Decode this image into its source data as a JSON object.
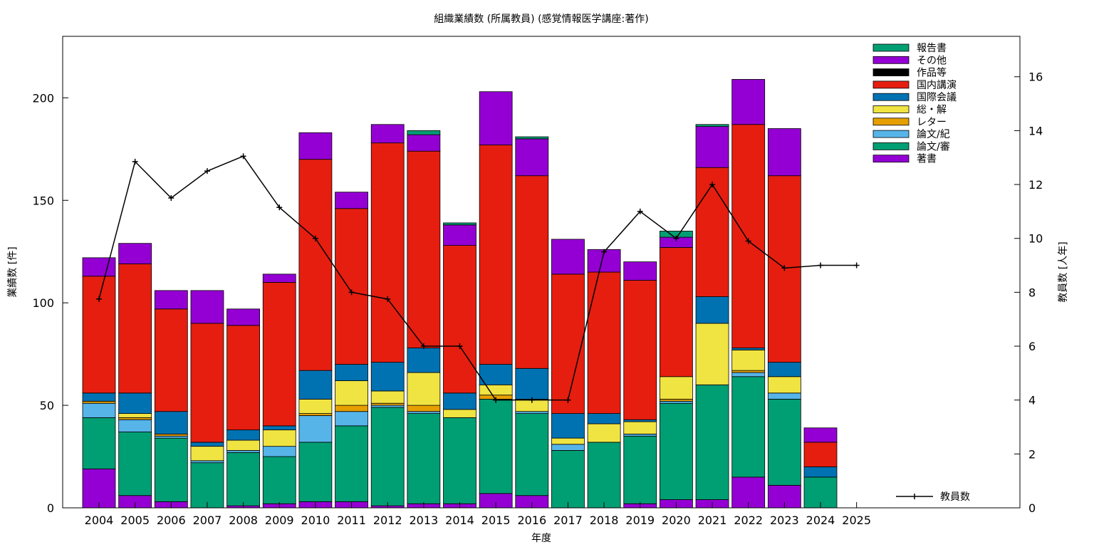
{
  "chart_data": {
    "type": "bar",
    "stacked": true,
    "title": "組織業績数 (所属教員) (感覚情報医学講座:著作)",
    "xlabel": "年度",
    "ylabel": "業績数 [件]",
    "y2label": "教員数 [人年]",
    "ylim": [
      0,
      230
    ],
    "y2lim": [
      0,
      17.5
    ],
    "yticks": [
      0,
      50,
      100,
      150,
      200
    ],
    "y2ticks": [
      0,
      2,
      4,
      6,
      8,
      10,
      12,
      14,
      16
    ],
    "grid": false,
    "legend_position": "top-right",
    "categories": [
      "2004",
      "2005",
      "2006",
      "2007",
      "2008",
      "2009",
      "2010",
      "2011",
      "2012",
      "2013",
      "2014",
      "2015",
      "2016",
      "2017",
      "2018",
      "2019",
      "2020",
      "2021",
      "2022",
      "2023",
      "2024",
      "2025"
    ],
    "series": [
      {
        "name": "著書",
        "color": "#9400d3",
        "values": [
          19,
          6,
          3,
          0,
          1,
          2,
          3,
          3,
          1,
          2,
          2,
          7,
          6,
          0,
          0,
          2,
          4,
          4,
          15,
          11,
          0,
          0
        ]
      },
      {
        "name": "論文/審",
        "color": "#009e73",
        "values": [
          25,
          31,
          31,
          22,
          26,
          23,
          29,
          37,
          48,
          44,
          42,
          46,
          40,
          28,
          32,
          33,
          47,
          56,
          49,
          42,
          15,
          0
        ]
      },
      {
        "name": "論文/紀",
        "color": "#56b4e9",
        "values": [
          7,
          6,
          1,
          1,
          1,
          5,
          13,
          7,
          1,
          1,
          0,
          0,
          1,
          3,
          0,
          1,
          1,
          0,
          2,
          3,
          0,
          0
        ]
      },
      {
        "name": "レター",
        "color": "#e69f00",
        "values": [
          1,
          1,
          1,
          0,
          0,
          0,
          1,
          3,
          1,
          3,
          0,
          2,
          0,
          0,
          0,
          0,
          1,
          0,
          1,
          0,
          0,
          0
        ]
      },
      {
        "name": "総・解",
        "color": "#f0e442",
        "values": [
          0,
          2,
          0,
          7,
          5,
          8,
          7,
          12,
          6,
          16,
          4,
          5,
          6,
          3,
          9,
          6,
          11,
          30,
          10,
          8,
          0,
          0
        ]
      },
      {
        "name": "国際会議",
        "color": "#0072b2",
        "values": [
          4,
          10,
          11,
          2,
          5,
          2,
          14,
          8,
          14,
          12,
          8,
          10,
          15,
          12,
          5,
          1,
          0,
          13,
          1,
          7,
          5,
          0
        ]
      },
      {
        "name": "国内講演",
        "color": "#e51e10",
        "values": [
          57,
          63,
          50,
          58,
          51,
          70,
          103,
          76,
          107,
          96,
          72,
          107,
          94,
          68,
          69,
          68,
          63,
          63,
          109,
          91,
          12,
          0
        ]
      },
      {
        "name": "作品等",
        "color": "#000000",
        "values": [
          0,
          0,
          0,
          0,
          0,
          0,
          0,
          0,
          0,
          0,
          0,
          0,
          0,
          0,
          0,
          0,
          0,
          0,
          0,
          0,
          0,
          0
        ]
      },
      {
        "name": "その他",
        "color": "#9400d3",
        "values": [
          9,
          10,
          9,
          16,
          8,
          4,
          13,
          8,
          9,
          8,
          10,
          26,
          18,
          17,
          11,
          9,
          5,
          20,
          22,
          23,
          7,
          0
        ]
      },
      {
        "name": "報告書",
        "color": "#009e73",
        "values": [
          0,
          0,
          0,
          0,
          0,
          0,
          0,
          0,
          0,
          2,
          1,
          0,
          1,
          0,
          0,
          0,
          3,
          1,
          0,
          0,
          0,
          0
        ]
      }
    ],
    "line": {
      "name": "教員数",
      "axis": "y2",
      "color": "#000000",
      "values": [
        7.75,
        12.85,
        11.5,
        12.5,
        13.05,
        11.15,
        10,
        8,
        7.75,
        6,
        6,
        4,
        4,
        4,
        9.5,
        11,
        10,
        12,
        9.9,
        8.9,
        9,
        9
      ]
    },
    "legend_order": [
      "報告書",
      "その他",
      "作品等",
      "国内講演",
      "国際会議",
      "総・解",
      "レター",
      "論文/紀",
      "論文/審",
      "著書"
    ]
  }
}
